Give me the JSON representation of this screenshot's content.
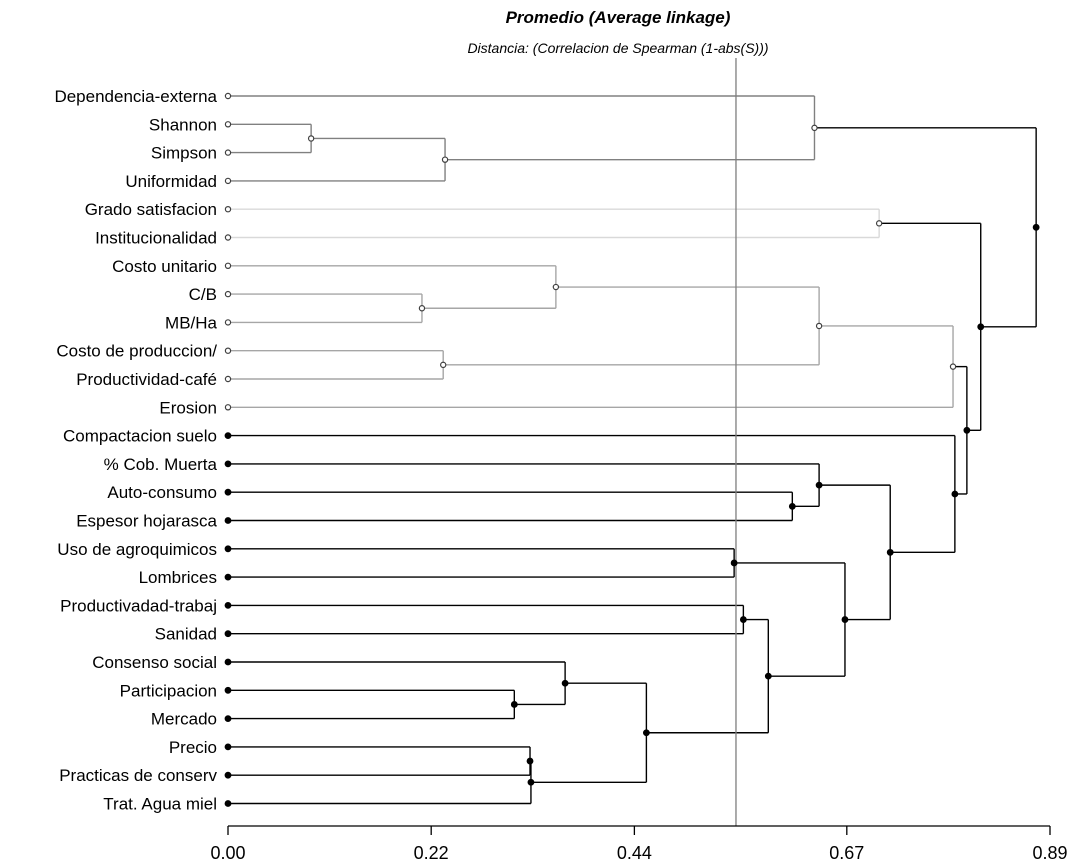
{
  "chart_data": {
    "type": "dendrogram",
    "title": "Promedio (Average linkage)",
    "subtitle": "Distancia: (Correlacion de Spearman (1-abs(S)))",
    "xlim": [
      0,
      0.89
    ],
    "x_ticks": [
      0.0,
      0.22,
      0.44,
      0.67,
      0.89
    ],
    "x_tick_labels": [
      "0.00",
      "0.22",
      "0.44",
      "0.67",
      "0.89"
    ],
    "cut_line": 0.55,
    "grid": false,
    "leaves": [
      "Dependencia-externa",
      "Shannon",
      "Simpson",
      "Uniformidad",
      "Grado satisfacion",
      "Institucionalidad",
      "Costo unitario",
      "C/B",
      "MB/Ha",
      "Costo de produccion/",
      "Productividad-café",
      "Erosion",
      "Compactacion suelo",
      "% Cob. Muerta",
      "Auto-consumo",
      "Espesor hojarasca",
      "Uso de agroquimicos",
      "Lombrices",
      "Productivadad-trabaj",
      "Sanidad",
      "Consenso social",
      "Participacion",
      "Mercado",
      "Precio",
      "Practicas de conserv",
      "Trat. Agua miel"
    ],
    "leaf_groups": [
      "gray-dark",
      "gray-dark",
      "gray-dark",
      "gray-dark",
      "gray-light",
      "gray-light",
      "gray-mid",
      "gray-mid",
      "gray-mid",
      "gray-mid",
      "gray-mid",
      "gray-mid",
      "black",
      "black",
      "black",
      "black",
      "black",
      "black",
      "black",
      "black",
      "black",
      "black",
      "black",
      "black",
      "black",
      "black"
    ],
    "merges": [
      {
        "id": "N1",
        "left": "Shannon",
        "right": "Simpson",
        "height": 0.09,
        "color": "gray-dark"
      },
      {
        "id": "N2",
        "left": "N1",
        "right": "Uniformidad",
        "height": 0.235,
        "color": "gray-dark"
      },
      {
        "id": "N3",
        "left": "Dependencia-externa",
        "right": "N2",
        "height": 0.635,
        "color": "gray-dark"
      },
      {
        "id": "N4",
        "left": "Grado satisfacion",
        "right": "Institucionalidad",
        "height": 0.705,
        "color": "gray-light"
      },
      {
        "id": "N5",
        "left": "C/B",
        "right": "MB/Ha",
        "height": 0.21,
        "color": "gray-mid"
      },
      {
        "id": "N6",
        "left": "Costo unitario",
        "right": "N5",
        "height": 0.355,
        "color": "gray-mid"
      },
      {
        "id": "N7",
        "left": "Costo de produccion/",
        "right": "Productividad-café",
        "height": 0.233,
        "color": "gray-mid"
      },
      {
        "id": "N8",
        "left": "N6",
        "right": "N7",
        "height": 0.64,
        "color": "gray-mid"
      },
      {
        "id": "N9",
        "left": "N8",
        "right": "Erosion",
        "height": 0.785,
        "color": "gray-mid"
      },
      {
        "id": "N10",
        "left": "Auto-consumo",
        "right": "Espesor hojarasca",
        "height": 0.611,
        "color": "black"
      },
      {
        "id": "N11",
        "left": "% Cob. Muerta",
        "right": "N10",
        "height": 0.64,
        "color": "black"
      },
      {
        "id": "N12",
        "left": "Uso de agroquimicos",
        "right": "Lombrices",
        "height": 0.548,
        "color": "black"
      },
      {
        "id": "N13",
        "left": "Productivadad-trabaj",
        "right": "Sanidad",
        "height": 0.558,
        "color": "black"
      },
      {
        "id": "N14",
        "left": "Participacion",
        "right": "Mercado",
        "height": 0.31,
        "color": "black"
      },
      {
        "id": "N15",
        "left": "Consenso social",
        "right": "N14",
        "height": 0.365,
        "color": "black"
      },
      {
        "id": "N16",
        "left": "Precio",
        "right": "Practicas de conserv",
        "height": 0.327,
        "color": "black"
      },
      {
        "id": "N17",
        "left": "N16",
        "right": "Trat. Agua miel",
        "height": 0.328,
        "color": "black"
      },
      {
        "id": "N18",
        "left": "N15",
        "right": "N17",
        "height": 0.453,
        "color": "black"
      },
      {
        "id": "N19",
        "left": "N13",
        "right": "N18",
        "height": 0.585,
        "color": "black"
      },
      {
        "id": "N20",
        "left": "N12",
        "right": "N19",
        "height": 0.668,
        "color": "black"
      },
      {
        "id": "N21",
        "left": "N11",
        "right": "N20",
        "height": 0.717,
        "color": "black"
      },
      {
        "id": "N22",
        "left": "Compactacion suelo",
        "right": "N21",
        "height": 0.787,
        "color": "black"
      },
      {
        "id": "N23",
        "left": "N9",
        "right": "N22",
        "height": 0.8,
        "color": "black"
      },
      {
        "id": "N24",
        "left": "N4",
        "right": "N23",
        "height": 0.815,
        "color": "black"
      },
      {
        "id": "N25",
        "left": "N3",
        "right": "N24",
        "height": 0.875,
        "color": "black"
      }
    ],
    "colors": {
      "gray-dark": "#808080",
      "gray-light": "#d9d9d9",
      "gray-mid": "#a6a6a6",
      "black": "#000000",
      "cut_line": "#7f7f7f"
    }
  }
}
